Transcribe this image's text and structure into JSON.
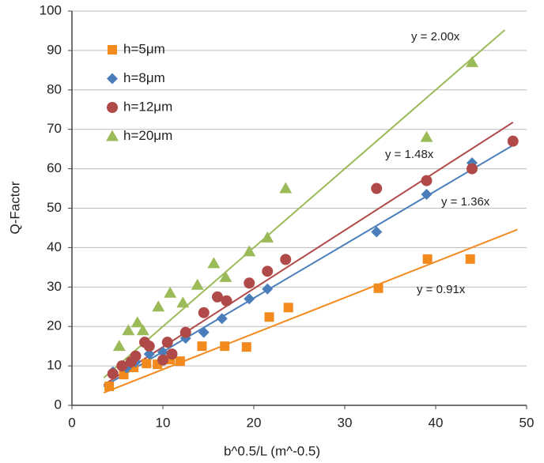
{
  "chart_data": {
    "type": "scatter",
    "x_label": "b^0.5/L (m^-0.5)",
    "y_label": "Q-Factor",
    "xlim": [
      0,
      50
    ],
    "xticks": [
      0,
      10,
      20,
      30,
      40,
      50
    ],
    "ylim": [
      0,
      100
    ],
    "yticks": [
      0,
      10,
      20,
      30,
      40,
      50,
      60,
      70,
      80,
      90,
      100
    ],
    "grid": true,
    "legend": "upper-left",
    "series": [
      {
        "name": "h=5μm",
        "color": "#f28a1e",
        "marker": "square",
        "x": [
          4.1,
          5.7,
          6.8,
          8.2,
          9.4,
          10.8,
          11.9,
          14.3,
          16.8,
          19.2,
          21.7,
          23.8,
          33.7,
          39.1,
          43.8
        ],
        "values": [
          4.8,
          7.8,
          9.6,
          10.6,
          10.4,
          11.6,
          11.2,
          15,
          15,
          14.8,
          22.4,
          24.8,
          29.7,
          37.1,
          37.1
        ],
        "trendline": {
          "slope": 0.91,
          "label": "y = 0.91x",
          "x_range": [
            3.5,
            49
          ]
        }
      },
      {
        "name": "h=8μm",
        "color": "#4a7ebb",
        "marker": "diamond",
        "x": [
          4.5,
          6,
          7,
          8.5,
          10,
          12.5,
          14.5,
          16.5,
          19.5,
          21.5,
          33.5,
          39,
          44
        ],
        "values": [
          8.5,
          9.5,
          11,
          13,
          13.5,
          17,
          18.5,
          22,
          27,
          29.5,
          44,
          53.5,
          61.5
        ],
        "trendline": {
          "slope": 1.36,
          "label": "y = 1.36x",
          "x_range": [
            3.5,
            48.5
          ]
        }
      },
      {
        "name": "h=12μm",
        "color": "#b04a48",
        "marker": "circle",
        "x": [
          4.5,
          5.5,
          6.5,
          7,
          8,
          8.5,
          10,
          10.5,
          11,
          12.5,
          14.5,
          16,
          17,
          19.5,
          21.5,
          23.5,
          33.5,
          39,
          44,
          48.5
        ],
        "values": [
          8,
          10,
          11,
          12.5,
          16,
          15,
          11.5,
          16,
          13,
          18.5,
          23.5,
          27.5,
          26.5,
          31,
          34,
          37,
          55,
          57,
          60,
          67
        ],
        "trendline": {
          "slope": 1.48,
          "label": "y = 1.48x",
          "x_range": [
            3.5,
            48.5
          ]
        }
      },
      {
        "name": "h=20μm",
        "color": "#9bbb59",
        "marker": "triangle",
        "x": [
          5.2,
          6.2,
          7.2,
          7.8,
          9.5,
          10.8,
          12.2,
          13.8,
          15.6,
          16.9,
          19.5,
          21.5,
          23.5,
          39,
          44
        ],
        "values": [
          15,
          19,
          21,
          19,
          25,
          28.5,
          26,
          30.5,
          36,
          32.5,
          39,
          42.5,
          55,
          68,
          87
        ],
        "trendline": {
          "slope": 2.0,
          "label": "y = 2.00x",
          "x_range": [
            3.5,
            47.6
          ]
        }
      }
    ]
  }
}
